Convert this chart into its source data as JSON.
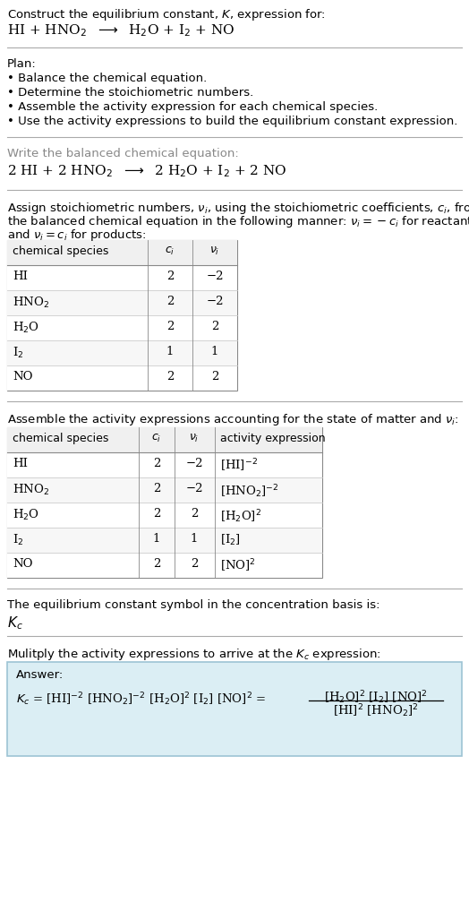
{
  "bg_color": "#ffffff",
  "text_color": "#000000",
  "gray_color": "#888888",
  "answer_box_bg": "#dbeef4",
  "answer_box_border": "#9dc3d4",
  "sep_line_color": "#aaaaaa",
  "title1": "Construct the equilibrium constant, $K$, expression for:",
  "title2": "HI + HNO$_2$  $\\longrightarrow$  H$_2$O + I$_2$ + NO",
  "plan_label": "Plan:",
  "plan_items": [
    "\\textbullet   Balance the chemical equation.",
    "\\textbullet   Determine the stoichiometric numbers.",
    "\\textbullet   Assemble the activity expression for each chemical species.",
    "\\textbullet   Use the activity expressions to build the equilibrium constant expression."
  ],
  "balanced_label": "Write the balanced chemical equation:",
  "balanced_eq": "2 HI + 2 HNO$_2$  $\\longrightarrow$  2 H$_2$O + I$_2$ + 2 NO",
  "stoich_intro1": "Assign stoichiometric numbers, $\\nu_i$, using the stoichiometric coefficients, $c_i$, from",
  "stoich_intro2": "the balanced chemical equation in the following manner: $\\nu_i = -c_i$ for reactants",
  "stoich_intro3": "and $\\nu_i = c_i$ for products:",
  "t1_h": [
    "chemical species",
    "$c_i$",
    "$\\nu_i$"
  ],
  "t1_rows": [
    [
      "HI",
      "2",
      "−2"
    ],
    [
      "HNO$_2$",
      "2",
      "−2"
    ],
    [
      "H$_2$O",
      "2",
      "2"
    ],
    [
      "I$_2$",
      "1",
      "1"
    ],
    [
      "NO",
      "2",
      "2"
    ]
  ],
  "act_intro": "Assemble the activity expressions accounting for the state of matter and $\\nu_i$:",
  "t2_h": [
    "chemical species",
    "$c_i$",
    "$\\nu_i$",
    "activity expression"
  ],
  "t2_rows": [
    [
      "HI",
      "2",
      "−2",
      "[HI]$^{-2}$"
    ],
    [
      "HNO$_2$",
      "2",
      "−2",
      "[HNO$_2$]$^{-2}$"
    ],
    [
      "H$_2$O",
      "2",
      "2",
      "[H$_2$O]$^2$"
    ],
    [
      "I$_2$",
      "1",
      "1",
      "[I$_2$]"
    ],
    [
      "NO",
      "2",
      "2",
      "[NO]$^2$"
    ]
  ],
  "kc_intro": "The equilibrium constant symbol in the concentration basis is:",
  "kc_sym": "$K_c$",
  "mult_intro": "Mulitply the activity expressions to arrive at the $K_c$ expression:",
  "ans_label": "Answer:",
  "kc_left": "$K_c$ = [HI]$^{-2}$ [HNO$_2$]$^{-2}$ [H$_2$O]$^2$ [I$_2$] [NO]$^2$ =",
  "frac_num": "[H$_2$O]$^2$ [I$_2$] [NO]$^2$",
  "frac_den": "[HI]$^2$ [HNO$_2$]$^2$"
}
